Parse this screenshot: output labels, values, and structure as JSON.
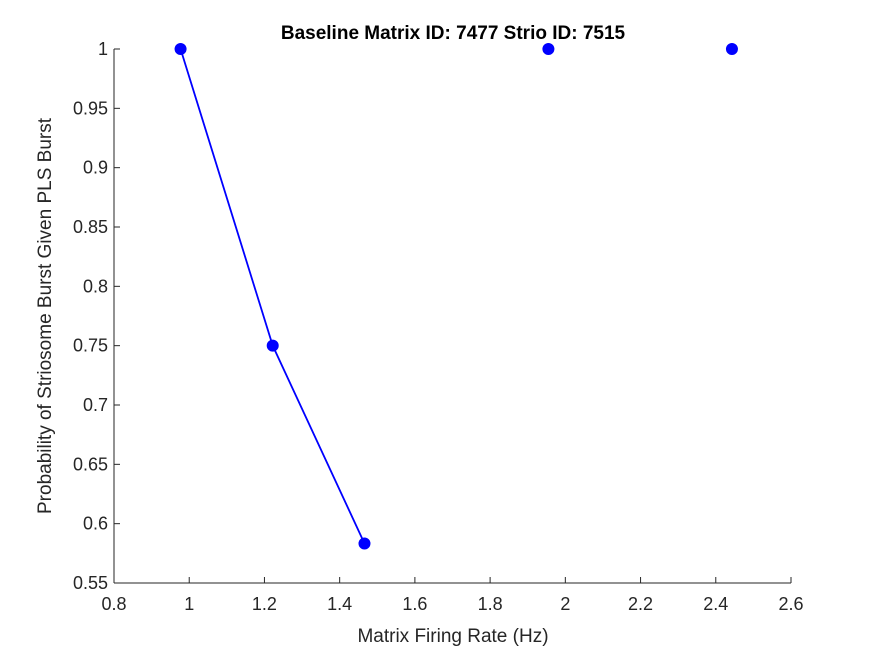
{
  "chart_data": {
    "type": "scatter",
    "title": "Baseline Matrix ID: 7477 Strio ID: 7515",
    "xlabel": "Matrix Firing Rate (Hz)",
    "ylabel": "Probability of Striosome Burst Given PLS Burst",
    "xlim": [
      0.8,
      2.6
    ],
    "ylim": [
      0.55,
      1.0
    ],
    "xticks": [
      0.8,
      1.0,
      1.2,
      1.4,
      1.6,
      1.8,
      2.0,
      2.2,
      2.4,
      2.6
    ],
    "xtick_labels": [
      "0.8",
      "1",
      "1.2",
      "1.4",
      "1.6",
      "1.8",
      "2",
      "2.2",
      "2.4",
      "2.6"
    ],
    "yticks": [
      0.55,
      0.6,
      0.65,
      0.7,
      0.75,
      0.8,
      0.85,
      0.9,
      0.95,
      1.0
    ],
    "ytick_labels": [
      "0.55",
      "0.6",
      "0.65",
      "0.7",
      "0.75",
      "0.8",
      "0.85",
      "0.9",
      "0.95",
      "1"
    ],
    "grid": false,
    "color": "#0000ff",
    "series": [
      {
        "x": [
          0.977,
          1.222,
          1.466,
          1.955,
          2.443
        ],
        "y": [
          1.0,
          0.75,
          0.5833,
          1.0,
          1.0
        ],
        "connected": [
          true,
          true,
          true,
          false,
          false
        ]
      }
    ]
  }
}
